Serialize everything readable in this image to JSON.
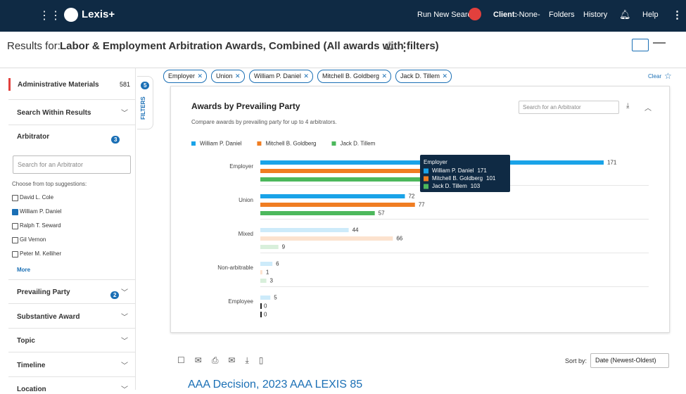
{
  "header": {
    "logo": "Lexis+",
    "run_search": "Run New Search",
    "client_label": "Client:",
    "client_value": "-None-",
    "nav": [
      "Folders",
      "History"
    ],
    "help": "Help"
  },
  "results_header": {
    "prefix": "Results for:",
    "title": "Labor & Employment Arbitration Awards, Combined (All awards with filters)"
  },
  "sidebar": {
    "administrative": {
      "label": "Administrative Materials",
      "count": 581
    },
    "search_within": "Search Within Results",
    "arbitrator": {
      "label": "Arbitrator",
      "count": 3,
      "search_placeholder": "Search for an Arbitrator",
      "suggestions_label": "Choose from top suggestions:",
      "suggestions": [
        {
          "name": "David L. Cole",
          "checked": false
        },
        {
          "name": "William P. Daniel",
          "checked": true
        },
        {
          "name": "Ralph T. Seward",
          "checked": false
        },
        {
          "name": "Gil Vernon",
          "checked": false
        },
        {
          "name": "Peter M. Kelliher",
          "checked": false
        }
      ],
      "more": "More"
    },
    "sections": [
      {
        "label": "Prevailing Party",
        "count": 2
      },
      {
        "label": "Substantive Award"
      },
      {
        "label": "Topic"
      },
      {
        "label": "Timeline"
      },
      {
        "label": "Location"
      }
    ]
  },
  "filters_tab": {
    "label": "FILTERS",
    "count": 5
  },
  "chips": [
    "Employer",
    "Union",
    "William P. Daniel",
    "Mitchell B. Goldberg",
    "Jack D. Tillem"
  ],
  "clear": "Clear",
  "chart_panel": {
    "search_placeholder": "Search for an Arbitrator"
  },
  "chart_data": {
    "type": "hbar",
    "title": "Awards by Prevailing Party",
    "subtitle": "Compare awards by prevailing party for up to 4 arbitrators.",
    "categories": [
      "Employer",
      "Union",
      "Mixed",
      "Non-arbitrable",
      "Employee"
    ],
    "series": [
      {
        "name": "William P. Daniel",
        "color": "#1aa3e8",
        "values": [
          171,
          72,
          44,
          6,
          5
        ]
      },
      {
        "name": "Mitchell B. Goldberg",
        "color": "#f07d22",
        "values": [
          101,
          77,
          66,
          1,
          0
        ]
      },
      {
        "name": "Jack D. Tillem",
        "color": "#4cb85c",
        "values": [
          103,
          57,
          9,
          3,
          0
        ]
      }
    ]
  },
  "results": {
    "sort_label": "Sort by:",
    "sort_value": "Date (Newest-Oldest)",
    "first_title": "AAA Decision, 2023 AAA LEXIS 85"
  }
}
